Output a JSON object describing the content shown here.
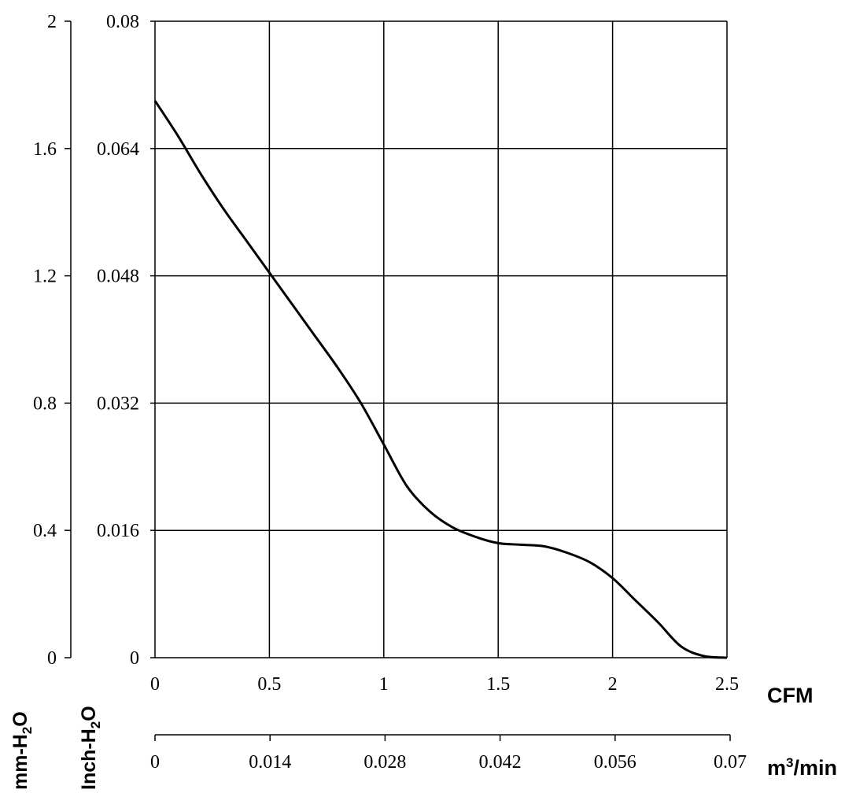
{
  "chart_data": {
    "type": "line",
    "title": "",
    "series": [
      {
        "x": [
          0,
          0.1,
          0.2,
          0.3,
          0.4,
          0.5,
          0.6,
          0.7,
          0.8,
          0.9,
          1.0,
          1.1,
          1.2,
          1.3,
          1.4,
          1.5,
          1.6,
          1.7,
          1.8,
          1.9,
          2.0,
          2.1,
          2.2,
          2.3,
          2.4,
          2.5
        ],
        "values": [
          1.75,
          1.64,
          1.52,
          1.41,
          1.31,
          1.21,
          1.11,
          1.01,
          0.91,
          0.8,
          0.67,
          0.54,
          0.46,
          0.41,
          0.38,
          0.36,
          0.355,
          0.35,
          0.33,
          0.3,
          0.25,
          0.18,
          0.11,
          0.035,
          0.005,
          0.0
        ]
      }
    ],
    "x_primary": {
      "label": "CFM",
      "range": [
        0,
        2.5
      ],
      "ticks": [
        "0",
        "0.5",
        "1",
        "1.5",
        "2",
        "2.5"
      ]
    },
    "x_secondary": {
      "label_base": "m",
      "label_sup": "3",
      "label_tail": "/min",
      "range": [
        0,
        0.07
      ],
      "ticks": [
        "0",
        "0.014",
        "0.028",
        "0.042",
        "0.056",
        "0.07"
      ]
    },
    "y_primary": {
      "label_pre": "mm-H",
      "label_sub": "2",
      "label_post": "O",
      "range": [
        0,
        2
      ],
      "ticks": [
        "0",
        "0.4",
        "0.8",
        "1.2",
        "1.6",
        "2"
      ]
    },
    "y_secondary": {
      "label_pre": "Inch-H",
      "label_sub": "2",
      "label_post": "O",
      "range": [
        0,
        0.08
      ],
      "ticks": [
        "0",
        "0.016",
        "0.032",
        "0.048",
        "0.064",
        "0.08"
      ]
    },
    "grid": true,
    "legend": "none"
  }
}
